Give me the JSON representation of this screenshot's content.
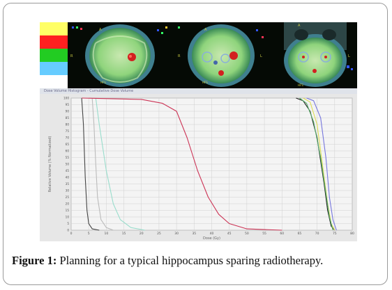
{
  "legend_colors": [
    "#ffff66",
    "#ff2020",
    "#22cc22",
    "#66ccff",
    "#ffffff"
  ],
  "legend_labels": [
    "",
    "",
    "",
    "",
    ""
  ],
  "chart_data": {
    "type": "line",
    "title": "Dose Volume Histogram - Cumulative Dose Volume",
    "xlabel": "Dose (Gy)",
    "ylabel": "Relative Volume (% Normalized)",
    "xlim": [
      0,
      80
    ],
    "ylim": [
      0,
      100
    ],
    "x_ticks": [
      "0",
      "5",
      "10",
      "15",
      "20",
      "25",
      "30",
      "35",
      "40",
      "45",
      "50",
      "55",
      "60",
      "65",
      "70",
      "75",
      "80"
    ],
    "y_ticks": [
      "0",
      "5",
      "10",
      "15",
      "20",
      "25",
      "30",
      "35",
      "40",
      "45",
      "50",
      "55",
      "60",
      "65",
      "70",
      "75",
      "80",
      "85",
      "90",
      "95",
      "100"
    ],
    "grid": true,
    "series": [
      {
        "color": "#444444",
        "points": [
          [
            3,
            100
          ],
          [
            3.5,
            80
          ],
          [
            4,
            40
          ],
          [
            4.5,
            15
          ],
          [
            5,
            5
          ],
          [
            6,
            1
          ],
          [
            8,
            0
          ]
        ]
      },
      {
        "color": "#bbbbbb",
        "points": [
          [
            6,
            100
          ],
          [
            6.5,
            80
          ],
          [
            7,
            50
          ],
          [
            7.5,
            25
          ],
          [
            8.5,
            8
          ],
          [
            10,
            2
          ],
          [
            12,
            0
          ]
        ]
      },
      {
        "color": "#99ddcc",
        "points": [
          [
            7,
            100
          ],
          [
            8,
            80
          ],
          [
            10,
            45
          ],
          [
            12,
            20
          ],
          [
            14,
            8
          ],
          [
            17,
            2
          ],
          [
            21,
            0
          ]
        ]
      },
      {
        "color": "#cc3355",
        "points": [
          [
            3,
            100
          ],
          [
            20,
            99
          ],
          [
            26,
            96
          ],
          [
            30,
            90
          ],
          [
            33,
            70
          ],
          [
            36,
            45
          ],
          [
            39,
            25
          ],
          [
            42,
            12
          ],
          [
            45,
            5
          ],
          [
            50,
            1
          ],
          [
            60,
            0
          ]
        ]
      },
      {
        "color": "#222222",
        "points": [
          [
            64,
            100
          ],
          [
            66,
            98
          ],
          [
            68,
            90
          ],
          [
            70,
            70
          ],
          [
            72,
            35
          ],
          [
            73,
            15
          ],
          [
            74,
            3
          ],
          [
            75,
            0
          ]
        ]
      },
      {
        "color": "#7777dd",
        "points": [
          [
            67,
            100
          ],
          [
            69,
            98
          ],
          [
            71,
            85
          ],
          [
            72.5,
            55
          ],
          [
            73.5,
            25
          ],
          [
            74.5,
            8
          ],
          [
            75.5,
            0
          ]
        ]
      },
      {
        "color": "#dddd55",
        "points": [
          [
            66,
            100
          ],
          [
            68,
            97
          ],
          [
            70,
            80
          ],
          [
            71.5,
            50
          ],
          [
            73,
            20
          ],
          [
            74,
            5
          ],
          [
            75,
            0
          ]
        ]
      },
      {
        "color": "#55aa66",
        "points": [
          [
            65,
            100
          ],
          [
            67,
            96
          ],
          [
            69,
            82
          ],
          [
            71,
            55
          ],
          [
            72.5,
            28
          ],
          [
            73.5,
            10
          ],
          [
            74.5,
            0
          ]
        ]
      }
    ]
  },
  "caption": {
    "label": "Figure 1:",
    "text": " Planning for a typical hippocampus sparing radiotherapy."
  }
}
